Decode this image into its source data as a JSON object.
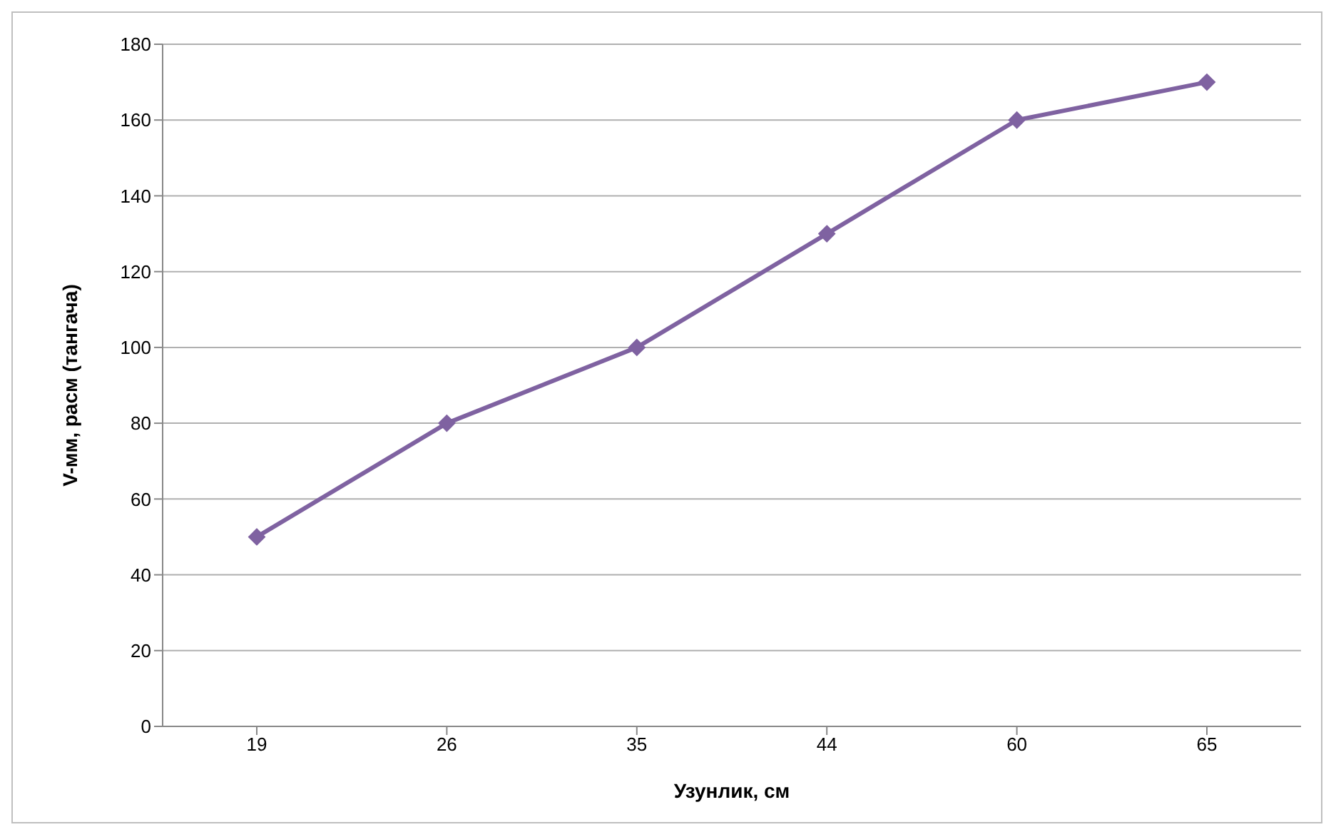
{
  "chart_data": {
    "type": "line",
    "xlabel": "Узунлик, см",
    "ylabel": "V-мм, расм (тангача)",
    "categories": [
      "19",
      "26",
      "35",
      "44",
      "60",
      "65"
    ],
    "series": [
      {
        "color": "#7f62a1",
        "values": [
          50,
          80,
          100,
          130,
          160,
          170
        ]
      }
    ],
    "ylim": [
      0,
      180
    ],
    "yticks": [
      0,
      20,
      40,
      60,
      80,
      100,
      120,
      140,
      160,
      180
    ],
    "grid": "y",
    "marker": "diamond",
    "line_style": "solid"
  }
}
